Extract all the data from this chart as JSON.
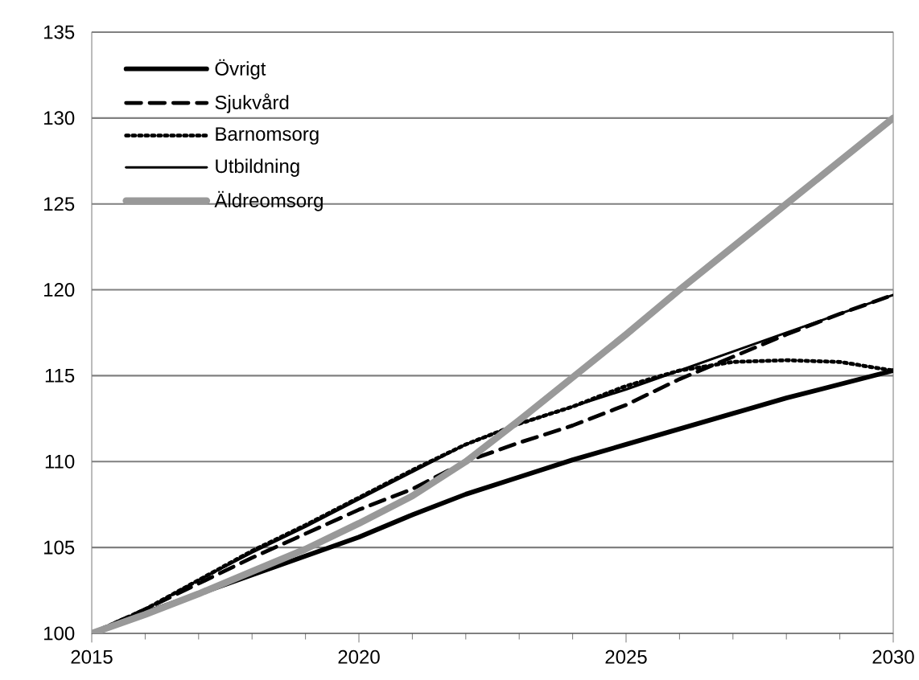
{
  "chart_data": {
    "type": "line",
    "x": [
      2015,
      2016,
      2017,
      2018,
      2019,
      2020,
      2021,
      2022,
      2023,
      2024,
      2025,
      2026,
      2027,
      2028,
      2029,
      2030
    ],
    "series": [
      {
        "name": "Övrigt",
        "color": "#000000",
        "line_style": "solid",
        "values": [
          100,
          101.2,
          102.3,
          103.4,
          104.5,
          105.6,
          106.9,
          108.1,
          109.1,
          110.1,
          111.0,
          111.9,
          112.8,
          113.7,
          114.5,
          115.3
        ]
      },
      {
        "name": "Sjukvård",
        "color": "#000000",
        "line_style": "dashed",
        "values": [
          100,
          101.4,
          102.9,
          104.4,
          105.8,
          107.2,
          108.4,
          110.0,
          111.1,
          112.1,
          113.3,
          114.8,
          116.1,
          117.4,
          118.6,
          119.7
        ]
      },
      {
        "name": "Barnomsorg",
        "color": "#000000",
        "line_style": "dotted",
        "values": [
          100,
          101.4,
          103.1,
          104.8,
          106.3,
          107.9,
          109.5,
          111.0,
          112.2,
          113.2,
          114.4,
          115.3,
          115.8,
          115.9,
          115.8,
          115.3
        ]
      },
      {
        "name": "Utbildning",
        "color": "#000000",
        "line_style": "solid",
        "values": [
          100,
          101.4,
          103.1,
          104.7,
          106.2,
          107.8,
          109.4,
          111.0,
          112.2,
          113.2,
          114.2,
          115.3,
          116.4,
          117.5,
          118.6,
          119.7
        ]
      },
      {
        "name": "Äldreomsorg",
        "color": "#999999",
        "line_style": "solid",
        "values": [
          100,
          101.1,
          102.3,
          103.6,
          104.9,
          106.4,
          108.0,
          110.0,
          112.4,
          114.9,
          117.4,
          120.0,
          122.5,
          125.0,
          127.5,
          130.0
        ]
      }
    ],
    "xlim": [
      2015,
      2030
    ],
    "xticks": [
      2015,
      2020,
      2025,
      2030
    ],
    "ylim": [
      100,
      135
    ],
    "yticks": [
      100,
      105,
      110,
      115,
      120,
      125,
      130,
      135
    ],
    "grid": "y",
    "legend": "top left",
    "marker": "none"
  }
}
